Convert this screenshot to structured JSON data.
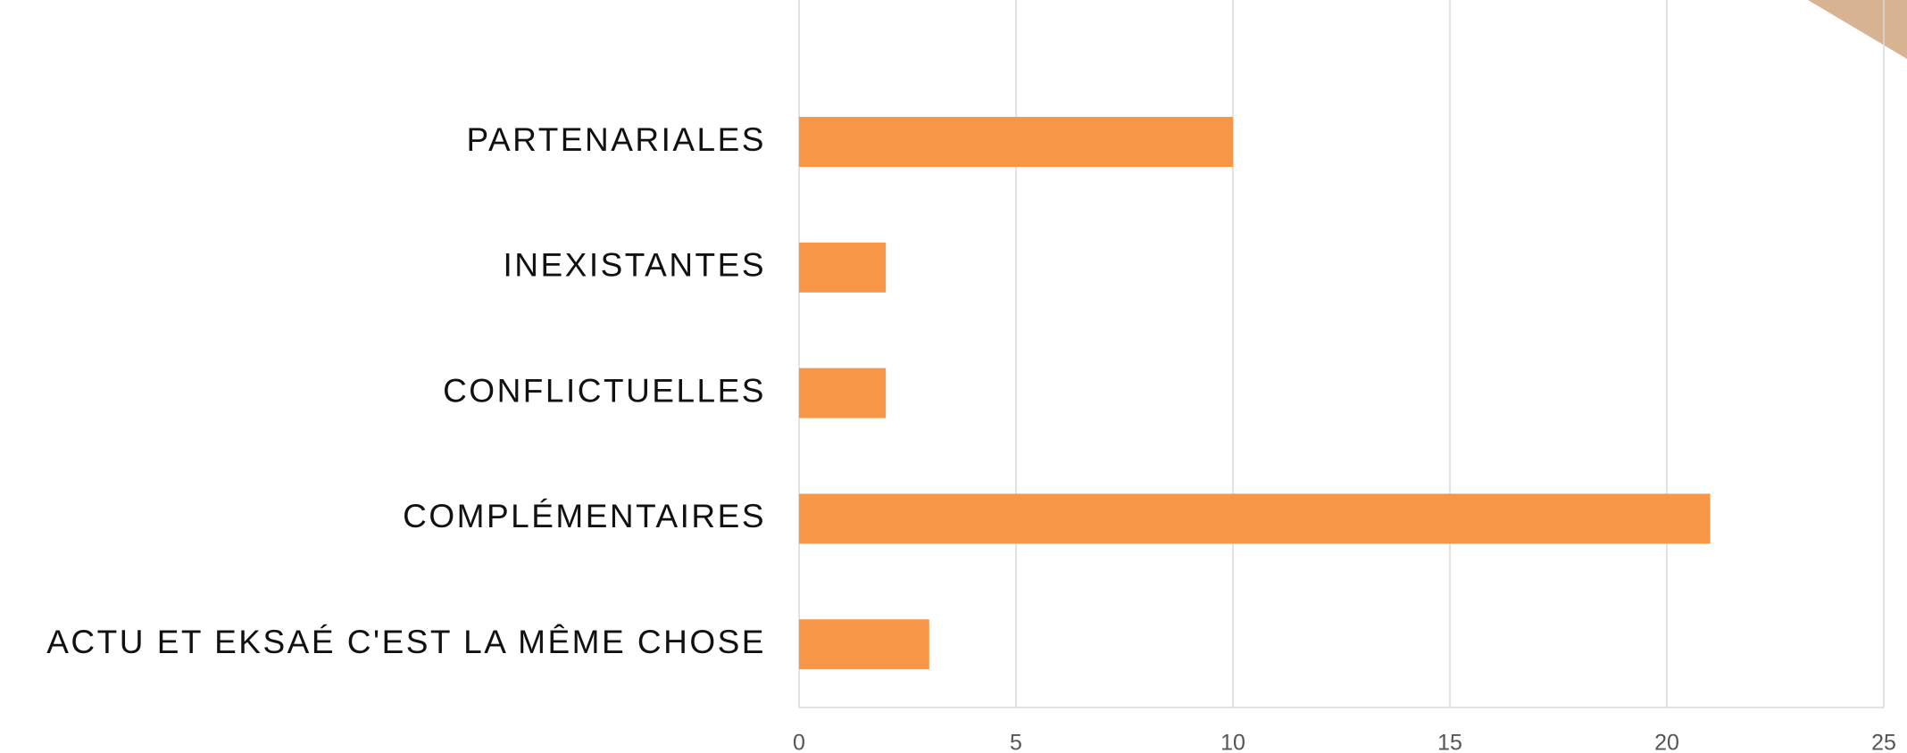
{
  "chart_data": {
    "type": "bar",
    "orientation": "horizontal",
    "categories": [
      "PARTENARIALES",
      "INEXISTANTES",
      "CONFLICTUELLES",
      "COMPLÉMENTAIRES",
      "ACTU ET EKSAÉ C'EST LA MÊME CHOSE"
    ],
    "values": [
      10,
      2,
      2,
      21,
      3
    ],
    "color": "#f79646",
    "xlim": [
      0,
      25
    ],
    "xticks": [
      0,
      5,
      10,
      15,
      20,
      25
    ],
    "grid": true
  }
}
